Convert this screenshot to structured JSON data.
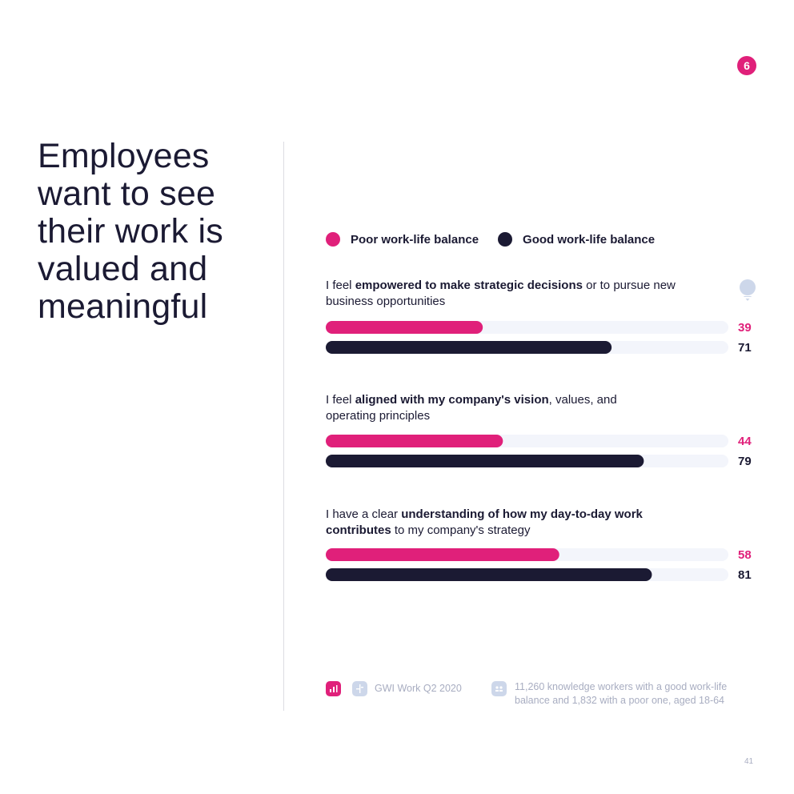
{
  "page_badge": "6",
  "headline": "Employees want to see their work is valued and meaningful",
  "legend": {
    "poor": "Poor work-life balance",
    "good": "Good work-life balance"
  },
  "colors": {
    "poor": "#e0207a",
    "good": "#1b1a33",
    "track": "#f3f5fb",
    "muted": "#a8adc1"
  },
  "questions": [
    {
      "pre": "I feel ",
      "bold": "empowered to make strategic decisions",
      "post": " or to pursue new business opportunities"
    },
    {
      "pre": "I feel ",
      "bold": "aligned with my company's vision",
      "post": ", values, and operating principles"
    },
    {
      "pre": "I have a clear ",
      "bold": "understanding of how my day-to-day work contributes",
      "post": " to my company's strategy"
    }
  ],
  "chart_data": {
    "type": "bar",
    "orientation": "horizontal",
    "xlim": [
      0,
      100
    ],
    "categories": [
      "I feel empowered to make strategic decisions or to pursue new business opportunities",
      "I feel aligned with my company's vision, values, and operating principles",
      "I have a clear understanding of how my day-to-day work contributes to my company's strategy"
    ],
    "series": [
      {
        "name": "Poor work-life balance",
        "values": [
          39,
          44,
          58
        ]
      },
      {
        "name": "Good work-life balance",
        "values": [
          71,
          79,
          81
        ]
      }
    ],
    "legend": "top"
  },
  "footer": {
    "source": "GWI Work Q2 2020",
    "base": "11,260 knowledge workers with a good work-life balance and 1,832 with a poor one, aged 18-64",
    "icons": [
      "chart-icon",
      "question-mark-icon",
      "people-icon"
    ]
  },
  "page_number": "41"
}
